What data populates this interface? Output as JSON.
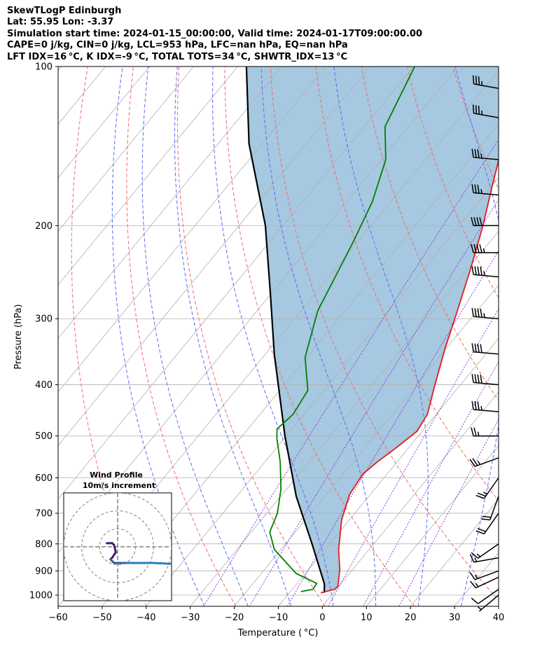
{
  "header": {
    "line1": "SkewTLogP Edinburgh",
    "line2": "Lat: 55.95   Lon: -3.37",
    "line3": "Simulation start time: 2024-01-15_00:00:00, Valid time: 2024-01-17T09:00:00.00",
    "line4": "CAPE=0 j/kg, CIN=0 j/kg, LCL=953 hPa, LFC=nan hPa, EQ=nan hPa",
    "line5": "LFT IDX=16 °C, K IDX=-9 °C, TOTAL TOTS=34 °C, SHWTR_IDX=13 °C"
  },
  "chart_data": [
    {
      "type": "line",
      "subtype": "skew-T log-P",
      "xlabel": "Temperature ( °C)",
      "ylabel": "Pressure (hPa)",
      "xlim": [
        -60,
        40
      ],
      "ylim": [
        1050,
        100
      ],
      "yscale": "log",
      "xticks": [
        -60,
        -50,
        -40,
        -30,
        -20,
        -10,
        0,
        10,
        20,
        30,
        40
      ],
      "yticks": [
        100,
        200,
        300,
        400,
        500,
        600,
        700,
        800,
        900,
        1000
      ],
      "grid": true,
      "series": [
        {
          "role": "temperature",
          "color": "#e41a1c",
          "points": [
            [
              -2.9,
              990
            ],
            [
              -0.4,
              975
            ],
            [
              -0.3,
              960
            ],
            [
              -2.9,
              895
            ],
            [
              -6.9,
              820
            ],
            [
              -11.8,
              720
            ],
            [
              -14.7,
              645
            ],
            [
              -15.5,
              590
            ],
            [
              -14.5,
              560
            ],
            [
              -13.0,
              530
            ],
            [
              -11.2,
              490
            ],
            [
              -12.0,
              455
            ],
            [
              -15.8,
              400
            ],
            [
              -20.4,
              340
            ],
            [
              -24.5,
              290
            ],
            [
              -29.5,
              240
            ],
            [
              -34.6,
              200
            ],
            [
              -39.6,
              170
            ],
            [
              -45.4,
              140
            ],
            [
              -53.2,
              115
            ],
            [
              -58.4,
              100
            ]
          ]
        },
        {
          "role": "dewpoint",
          "color": "#008000",
          "points": [
            [
              -7.6,
              985
            ],
            [
              -5.3,
              975
            ],
            [
              -5.6,
              950
            ],
            [
              -12.1,
              910
            ],
            [
              -21.5,
              820
            ],
            [
              -25.8,
              760
            ],
            [
              -27.6,
              700
            ],
            [
              -31.3,
              630
            ],
            [
              -36.5,
              560
            ],
            [
              -41.7,
              505
            ],
            [
              -43.4,
              485
            ],
            [
              -42.5,
              455
            ],
            [
              -43.6,
              410
            ],
            [
              -50.4,
              355
            ],
            [
              -56.2,
              290
            ],
            [
              -61.0,
              215
            ],
            [
              -64.2,
              180
            ],
            [
              -69.0,
              150
            ],
            [
              -75.3,
              130
            ],
            [
              -79.8,
              100
            ]
          ]
        },
        {
          "role": "parcel_profile",
          "color": "#000000",
          "points": [
            [
              -2.1,
              990
            ],
            [
              -3.7,
              953
            ],
            [
              -14.0,
              800
            ],
            [
              -26.5,
              650
            ],
            [
              -40.3,
              500
            ],
            [
              -58.0,
              350
            ],
            [
              -70.0,
              270
            ],
            [
              -84.0,
              200
            ],
            [
              -103.0,
              140
            ],
            [
              -118.0,
              100
            ]
          ]
        }
      ],
      "shaded_region": {
        "between": [
          "temperature",
          "parcel_profile"
        ],
        "color": "#a6c8e0"
      },
      "reference_lines": {
        "dry_adiabats_theta_K": [
          230,
          250,
          270,
          290,
          310,
          330,
          350,
          370,
          390,
          410,
          430,
          450,
          470
        ],
        "moist_adiabats_start_C": [
          -30,
          -20,
          -10,
          0,
          10,
          20,
          30
        ],
        "mixing_ratio_lines_gkg": [
          0.4,
          1,
          2,
          4,
          7,
          12
        ]
      },
      "wind_barbs": {
        "color": "#000000",
        "levels": [
          {
            "p": 1000,
            "speed_kt": 5,
            "dir_deg": 230
          },
          {
            "p": 975,
            "speed_kt": 10,
            "dir_deg": 235
          },
          {
            "p": 925,
            "speed_kt": 15,
            "dir_deg": 245
          },
          {
            "p": 900,
            "speed_kt": 15,
            "dir_deg": 250
          },
          {
            "p": 850,
            "speed_kt": 15,
            "dir_deg": 260
          },
          {
            "p": 800,
            "speed_kt": 15,
            "dir_deg": 235
          },
          {
            "p": 700,
            "speed_kt": 20,
            "dir_deg": 215
          },
          {
            "p": 650,
            "speed_kt": 20,
            "dir_deg": 200
          },
          {
            "p": 600,
            "speed_kt": 25,
            "dir_deg": 215
          },
          {
            "p": 550,
            "speed_kt": 25,
            "dir_deg": 250
          },
          {
            "p": 500,
            "speed_kt": 25,
            "dir_deg": 270
          },
          {
            "p": 450,
            "speed_kt": 35,
            "dir_deg": 275
          },
          {
            "p": 400,
            "speed_kt": 40,
            "dir_deg": 275
          },
          {
            "p": 350,
            "speed_kt": 40,
            "dir_deg": 275
          },
          {
            "p": 300,
            "speed_kt": 45,
            "dir_deg": 275
          },
          {
            "p": 250,
            "speed_kt": 45,
            "dir_deg": 275
          },
          {
            "p": 225,
            "speed_kt": 45,
            "dir_deg": 270
          },
          {
            "p": 200,
            "speed_kt": 40,
            "dir_deg": 270
          },
          {
            "p": 175,
            "speed_kt": 35,
            "dir_deg": 275
          },
          {
            "p": 150,
            "speed_kt": 35,
            "dir_deg": 275
          },
          {
            "p": 125,
            "speed_kt": 35,
            "dir_deg": 280
          },
          {
            "p": 110,
            "speed_kt": 35,
            "dir_deg": 280
          }
        ]
      }
    },
    {
      "type": "line",
      "subtype": "hodograph",
      "title": "Wind Profile",
      "subtitle": "10m/s increment",
      "ring_interval_ms": 10,
      "rings": 3,
      "xlim": [
        -30,
        30
      ],
      "ylim": [
        -30,
        30
      ],
      "colormap": [
        "#4b1a6e",
        "#3b5a9a",
        "#2c7fb8"
      ],
      "points": [
        [
          -6,
          2
        ],
        [
          -3,
          2
        ],
        [
          -2,
          1
        ],
        [
          -1,
          -3
        ],
        [
          -3,
          -6
        ],
        [
          -4,
          -7
        ],
        [
          -2,
          -9
        ],
        [
          1,
          -9
        ],
        [
          5,
          -9
        ],
        [
          10,
          -9
        ],
        [
          15,
          -9
        ],
        [
          20,
          -9
        ],
        [
          30,
          -9.5
        ]
      ]
    }
  ]
}
